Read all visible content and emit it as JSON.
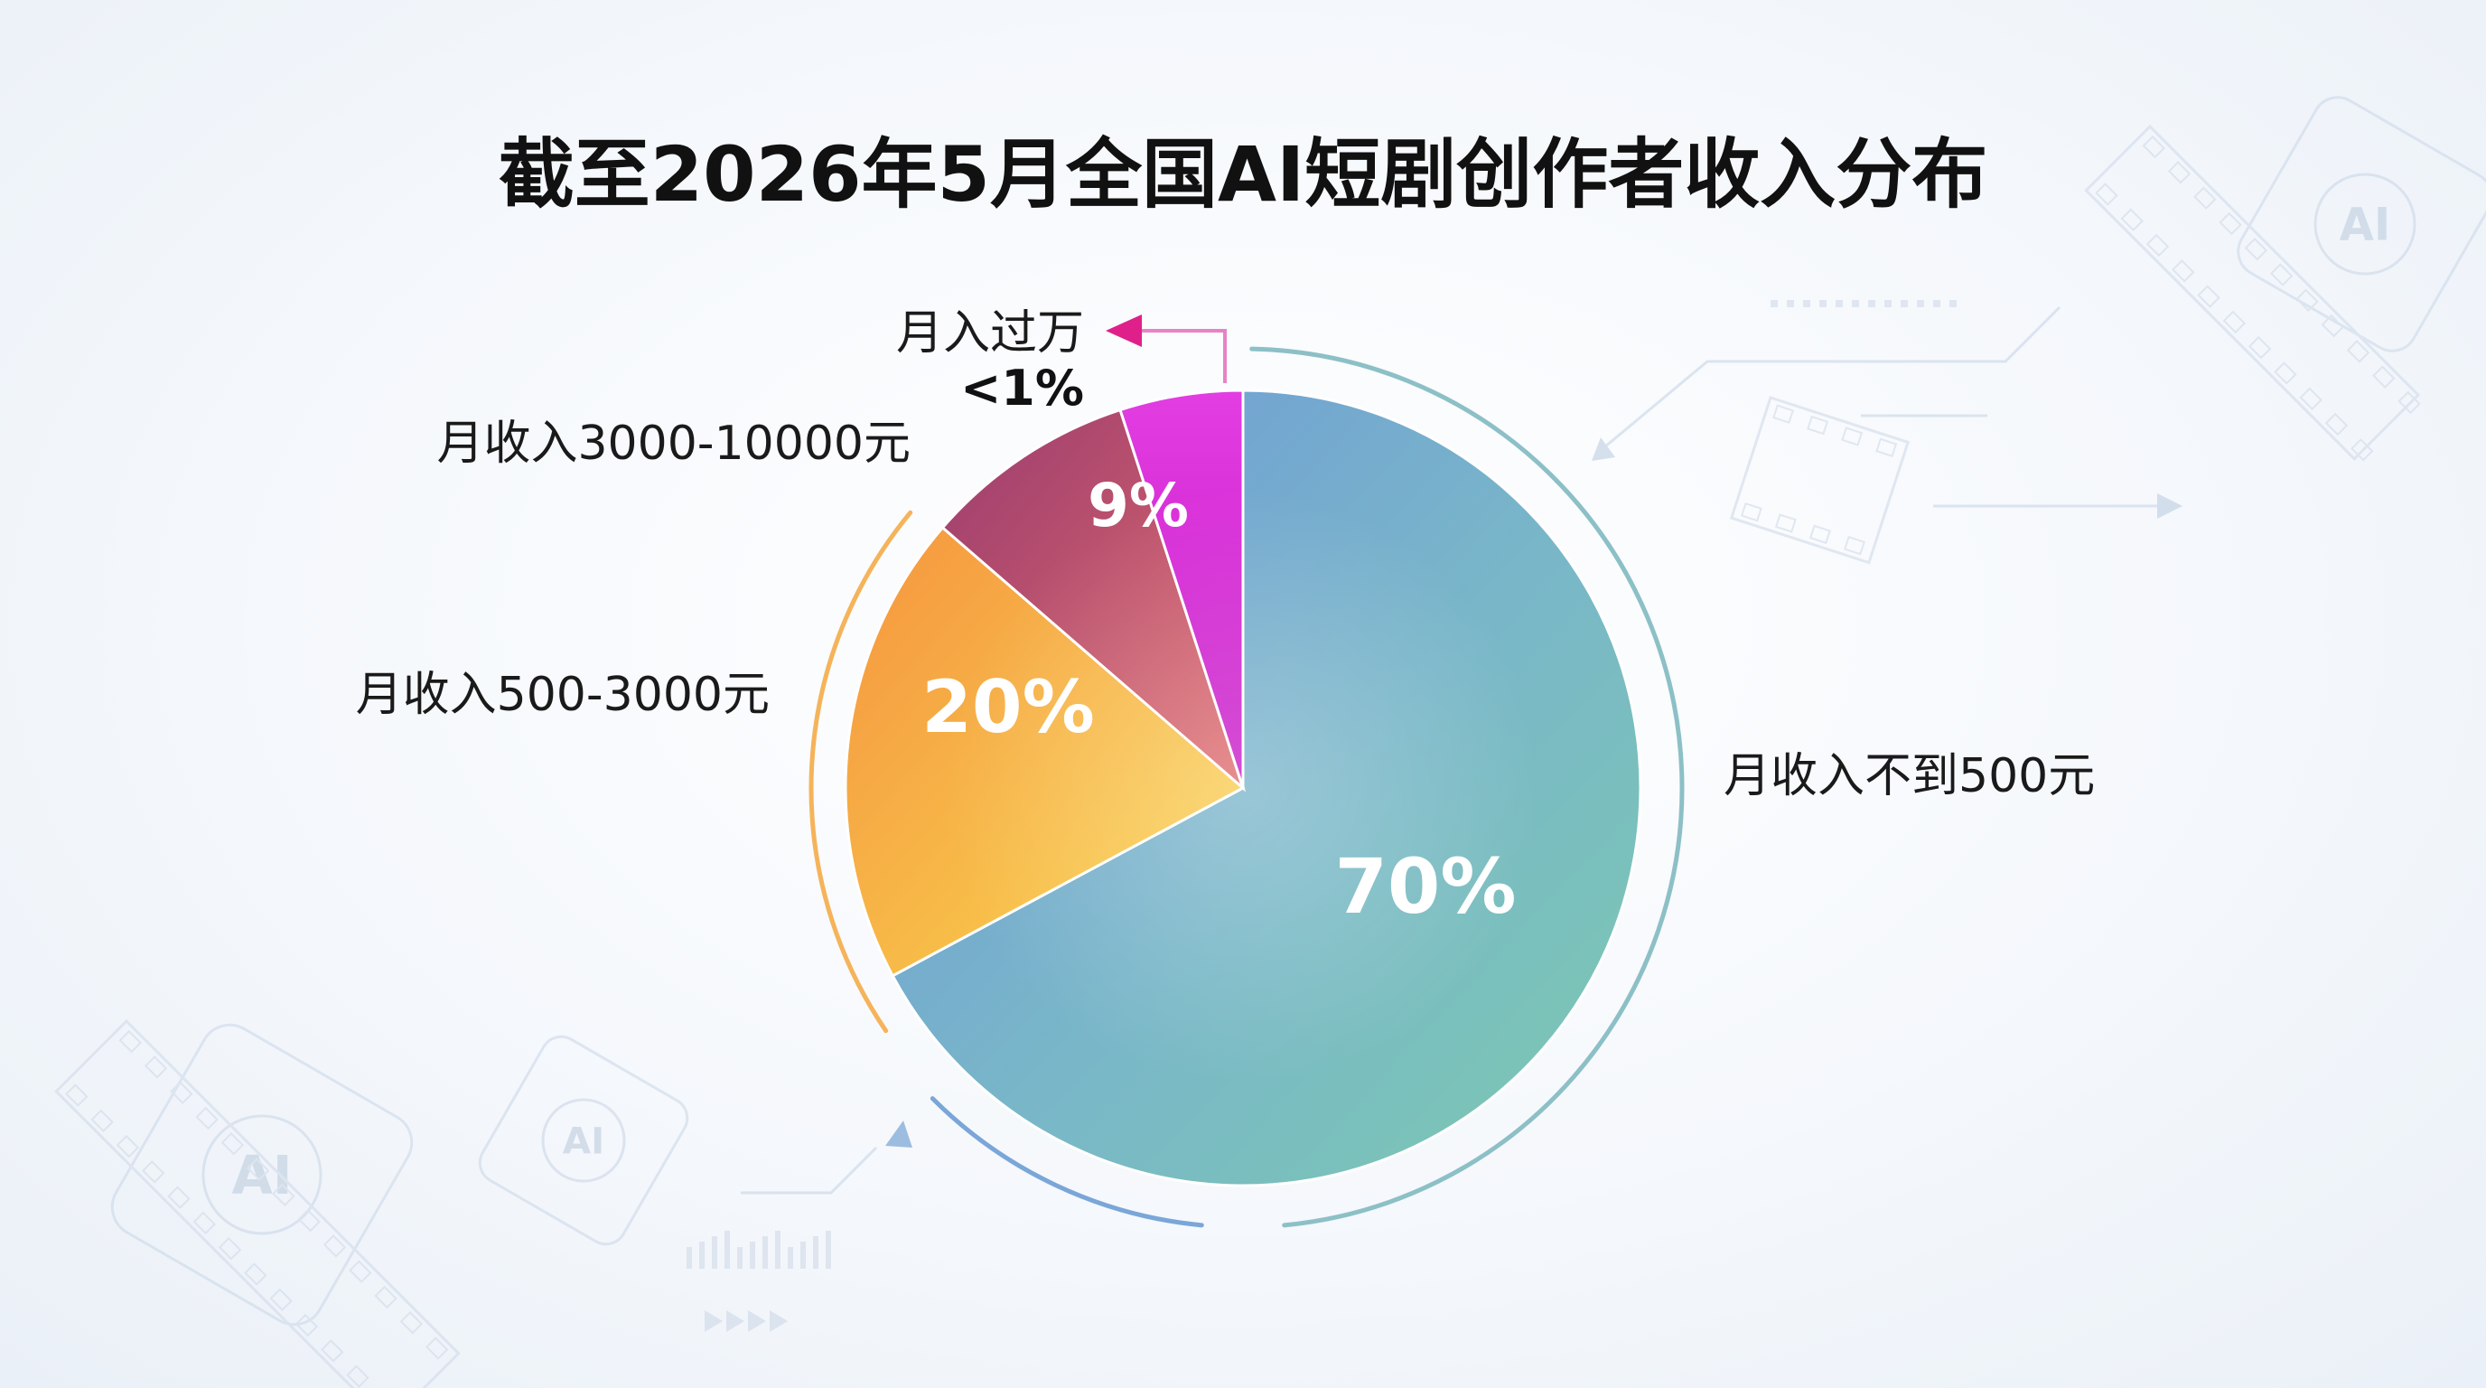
{
  "chart_data": {
    "type": "pie",
    "title": "截至2026年5月全国AI短剧创作者收入分布",
    "categories": [
      "月收入不到500元",
      "月收入500-3000元",
      "月收入3000-10000元",
      "月入过万"
    ],
    "values": [
      70,
      20,
      9,
      1
    ],
    "value_labels": [
      "70%",
      "20%",
      "9%",
      "<1%"
    ],
    "colors": [
      "#7fb3d6",
      "#f7a84a",
      "#b04a6c",
      "#d61fd6"
    ],
    "legend": "none"
  },
  "decor": {
    "ai_badge": "AI"
  }
}
